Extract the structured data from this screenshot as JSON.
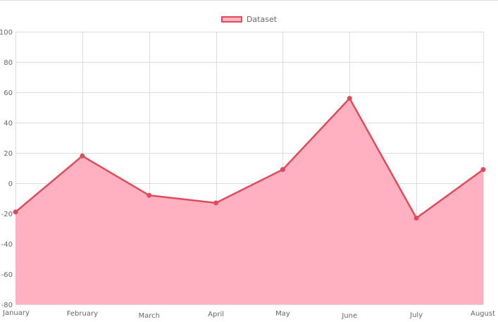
{
  "chart_data": {
    "type": "area",
    "categories": [
      "January",
      "February",
      "March",
      "April",
      "May",
      "June",
      "July",
      "August"
    ],
    "series": [
      {
        "name": "Dataset",
        "values": [
          -19,
          18,
          -8,
          -13,
          9,
          56,
          -23,
          9
        ]
      }
    ],
    "ylim": [
      -80,
      100
    ],
    "yticks": [
      100,
      80,
      60,
      40,
      20,
      0,
      -20,
      -40,
      -60,
      -80
    ],
    "grid": true,
    "legend_position": "top",
    "colors": {
      "line": "#de4c5b",
      "fill": "#ffb1c1",
      "grid": "#dddddd",
      "tick_text": "#666666"
    }
  }
}
